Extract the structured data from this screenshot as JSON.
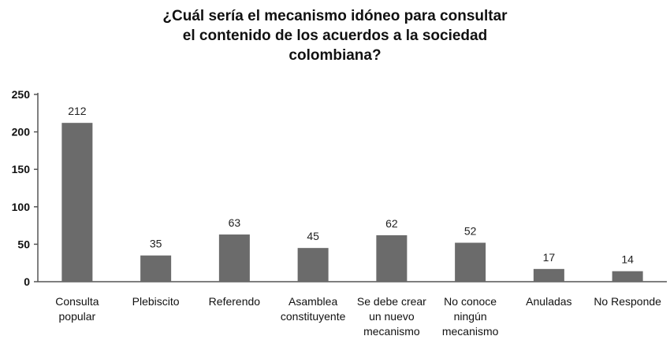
{
  "chart_data": {
    "type": "bar",
    "title_lines": [
      "¿Cuál sería el mecanismo idóneo para consultar",
      "el contenido de los acuerdos a la sociedad",
      "colombiana?"
    ],
    "categories": [
      [
        "Consulta",
        "popular"
      ],
      [
        "Plebiscito"
      ],
      [
        "Referendo"
      ],
      [
        "Asamblea",
        "constituyente"
      ],
      [
        "Se debe crear",
        "un nuevo",
        "mecanismo"
      ],
      [
        "No conoce",
        "ningún",
        "mecanismo"
      ],
      [
        "Anuladas"
      ],
      [
        "No Responde"
      ]
    ],
    "values": [
      212,
      35,
      63,
      45,
      62,
      52,
      17,
      14
    ],
    "yticks": [
      0,
      50,
      100,
      150,
      200,
      250
    ],
    "ylim": [
      0,
      250
    ],
    "bar_color": "#6b6b6b",
    "axis_color": "#555555"
  }
}
